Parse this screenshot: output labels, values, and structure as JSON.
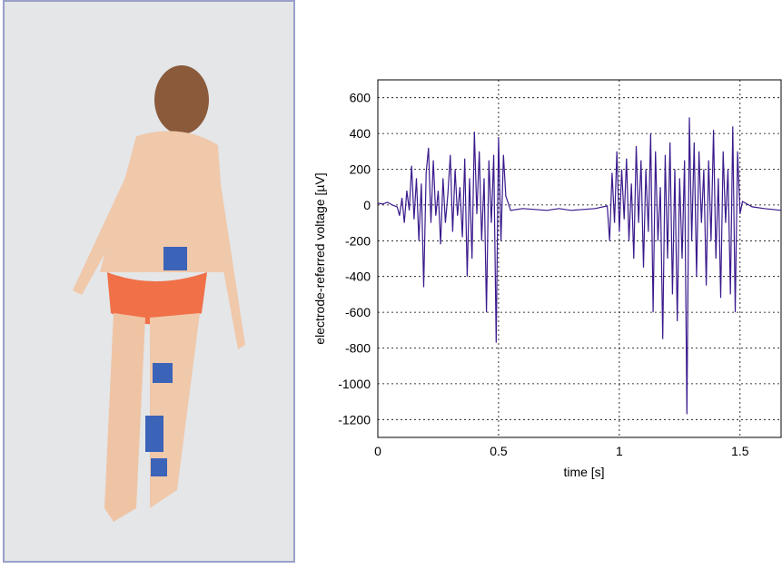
{
  "chart_data": {
    "type": "line",
    "xlabel": "time [s]",
    "ylabel": "electrode-referred voltage [µV]",
    "color": "#3a1a8c",
    "grid": true,
    "xlim": [
      0,
      1.67
    ],
    "ylim": [
      -1300,
      700
    ],
    "xticks": [
      0,
      0.5,
      1,
      1.5
    ],
    "yticks": [
      -1200,
      -1000,
      -800,
      -600,
      -400,
      -200,
      0,
      200,
      400,
      600
    ],
    "x": [
      0,
      0.02,
      0.04,
      0.06,
      0.08,
      0.09,
      0.1,
      0.11,
      0.12,
      0.13,
      0.14,
      0.15,
      0.16,
      0.17,
      0.18,
      0.19,
      0.2,
      0.21,
      0.22,
      0.23,
      0.24,
      0.25,
      0.26,
      0.27,
      0.28,
      0.29,
      0.3,
      0.31,
      0.32,
      0.33,
      0.34,
      0.35,
      0.36,
      0.37,
      0.38,
      0.39,
      0.4,
      0.41,
      0.42,
      0.43,
      0.44,
      0.45,
      0.46,
      0.47,
      0.48,
      0.49,
      0.5,
      0.51,
      0.52,
      0.53,
      0.54,
      0.55,
      0.6,
      0.65,
      0.7,
      0.75,
      0.8,
      0.85,
      0.9,
      0.95,
      0.96,
      0.97,
      0.98,
      0.99,
      1.0,
      1.01,
      1.02,
      1.03,
      1.04,
      1.05,
      1.06,
      1.07,
      1.08,
      1.09,
      1.1,
      1.11,
      1.12,
      1.13,
      1.14,
      1.15,
      1.16,
      1.17,
      1.18,
      1.19,
      1.2,
      1.21,
      1.22,
      1.23,
      1.24,
      1.25,
      1.26,
      1.27,
      1.28,
      1.29,
      1.3,
      1.31,
      1.32,
      1.33,
      1.34,
      1.35,
      1.36,
      1.37,
      1.38,
      1.39,
      1.4,
      1.41,
      1.42,
      1.43,
      1.44,
      1.45,
      1.46,
      1.47,
      1.48,
      1.49,
      1.5,
      1.51,
      1.55,
      1.6,
      1.67
    ],
    "values": [
      10,
      5,
      15,
      0,
      -10,
      -60,
      40,
      -100,
      80,
      -30,
      220,
      -80,
      150,
      -200,
      120,
      -460,
      180,
      320,
      -100,
      250,
      -60,
      80,
      -220,
      150,
      -100,
      60,
      280,
      -150,
      200,
      -60,
      100,
      -180,
      260,
      -400,
      150,
      -300,
      410,
      -50,
      300,
      -200,
      150,
      -600,
      250,
      -100,
      280,
      -770,
      380,
      -200,
      280,
      50,
      10,
      -30,
      -20,
      -25,
      -30,
      -20,
      -30,
      -25,
      -20,
      -5,
      -200,
      180,
      -100,
      300,
      -150,
      200,
      -80,
      260,
      -200,
      120,
      -300,
      330,
      -100,
      250,
      -350,
      200,
      -150,
      400,
      -600,
      300,
      -200,
      100,
      -750,
      280,
      -300,
      350,
      -500,
      200,
      -650,
      150,
      -300,
      250,
      -1170,
      490,
      -200,
      350,
      -400,
      300,
      -100,
      200,
      -450,
      250,
      -200,
      420,
      -300,
      150,
      -520,
      300,
      -100,
      200,
      -500,
      440,
      -600,
      300,
      -50,
      20,
      -10,
      -20,
      -30
    ]
  }
}
